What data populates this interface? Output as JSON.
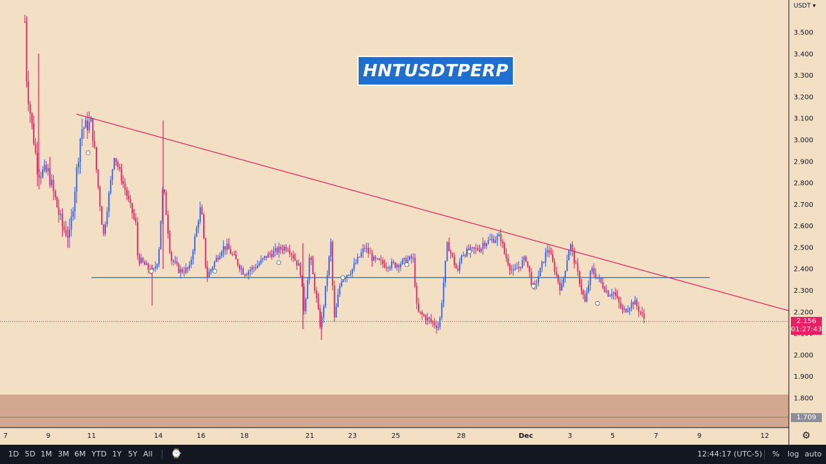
{
  "symbol_title": "HNTUSDTPERP",
  "currency_menu": "USDT",
  "last_price": "2.156",
  "countdown": "01:27:43",
  "support_price_label": "1.709",
  "colors": {
    "background": "#f2dfc4",
    "bull_candle": "#2962ff",
    "bear_candle": "#e91e63",
    "trendline": "#e0245e",
    "horizontal_level": "#1f6fd0",
    "support_zone": "#d2a890",
    "title_box": "#1e6fd0",
    "toolbar_bg": "#131722"
  },
  "toolbar": {
    "ranges": [
      "1D",
      "5D",
      "1M",
      "3M",
      "6M",
      "YTD",
      "1Y",
      "5Y",
      "All"
    ],
    "time": "12:44:17 (UTC-5)",
    "percent": "%",
    "log": "log",
    "auto": "auto"
  },
  "chart_data": {
    "type": "candlestick",
    "y_axis_ticks": [
      "3.500",
      "3.400",
      "3.300",
      "3.200",
      "3.100",
      "3.000",
      "2.900",
      "2.800",
      "2.700",
      "2.600",
      "2.500",
      "2.400",
      "2.300",
      "2.200",
      "2.100",
      "2.000",
      "1.900",
      "1.800"
    ],
    "x_axis_ticks": [
      "7",
      "9",
      "11",
      "14",
      "16",
      "18",
      "21",
      "23",
      "25",
      "28",
      "Dec",
      "3",
      "5",
      "7",
      "9",
      "12"
    ],
    "ylim": [
      1.709,
      3.6
    ],
    "close_path": [
      [
        "Nov 7",
        3.55
      ],
      [
        "Nov 8",
        3.25
      ],
      [
        "Nov 9",
        2.85
      ],
      [
        "Nov 10",
        2.55
      ],
      [
        "Nov 11",
        3.08
      ],
      [
        "Nov 12",
        2.93
      ],
      [
        "Nov 13",
        2.6
      ],
      [
        "Nov 14",
        2.45
      ],
      [
        "Nov 15",
        2.39
      ],
      [
        "Nov 16",
        2.7
      ],
      [
        "Nov 17",
        2.5
      ],
      [
        "Nov 18",
        2.38
      ],
      [
        "Nov 19",
        2.46
      ],
      [
        "Nov 20",
        2.5
      ],
      [
        "Nov 21",
        2.47
      ],
      [
        "Nov 22",
        2.53
      ],
      [
        "Nov 23",
        2.4
      ],
      [
        "Nov 24",
        2.44
      ],
      [
        "Nov 25",
        2.42
      ],
      [
        "Nov 26",
        2.2
      ],
      [
        "Nov 27",
        2.13
      ],
      [
        "Nov 28",
        2.47
      ],
      [
        "Nov 29",
        2.52
      ],
      [
        "Nov 30",
        2.47
      ],
      [
        "Dec 1",
        2.45
      ],
      [
        "Dec 2",
        2.5
      ],
      [
        "Dec 3",
        2.52
      ],
      [
        "Dec 4",
        2.4
      ],
      [
        "Dec 5",
        2.3
      ],
      [
        "Dec 6",
        2.25
      ],
      [
        "Dec 7",
        2.156
      ]
    ],
    "last_price": 2.156,
    "horizontal_level": 2.36,
    "descending_trendline": [
      [
        "Nov 10",
        3.12
      ],
      [
        "Dec 12",
        2.21
      ]
    ],
    "support_zone": [
      1.709,
      1.815
    ],
    "annotation": "HNTUSDTPERP"
  }
}
